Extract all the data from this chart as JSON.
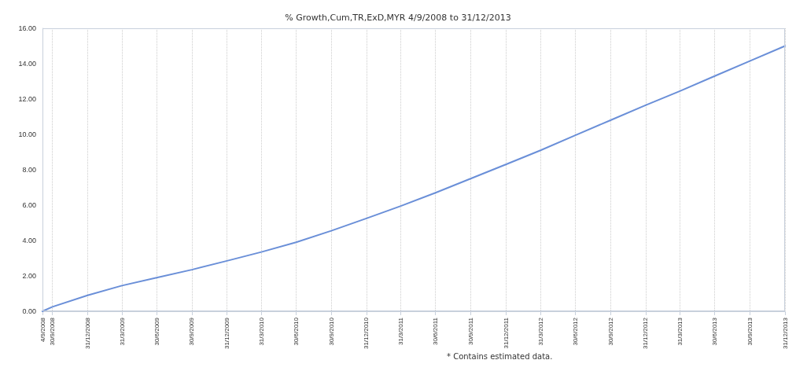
{
  "chart_data": {
    "type": "line",
    "title": "% Growth,Cum,TR,ExD,MYR 4/9/2008 to 31/12/2013",
    "annotations": [
      "* Contains estimated data."
    ],
    "x": [
      "2008-09-04",
      "2008-09-30",
      "2008-12-31",
      "2009-03-31",
      "2009-06-30",
      "2009-09-30",
      "2009-12-31",
      "2010-03-31",
      "2010-06-30",
      "2010-09-30",
      "2010-12-31",
      "2011-03-31",
      "2011-06-30",
      "2011-09-30",
      "2011-12-31",
      "2012-03-31",
      "2012-06-30",
      "2012-09-30",
      "2012-12-31",
      "2013-03-31",
      "2013-06-30",
      "2013-09-30",
      "2013-12-31"
    ],
    "series": [
      {
        "color": "#6a8fd8",
        "values": [
          0,
          0.25,
          0.9,
          1.45,
          1.9,
          2.35,
          2.85,
          3.35,
          3.9,
          4.55,
          5.25,
          5.95,
          6.7,
          7.5,
          8.3,
          9.1,
          9.95,
          10.8,
          11.65,
          12.45,
          13.3,
          14.15,
          15.0
        ]
      }
    ],
    "xlim": [
      "2008-09-04",
      "2013-12-31"
    ],
    "xticks": [
      {
        "value": "2008-09-04",
        "label": "4/9/2008"
      },
      {
        "value": "2008-09-30",
        "label": "30/9/2008"
      },
      {
        "value": "2008-12-31",
        "label": "31/12/2008"
      },
      {
        "value": "2009-03-31",
        "label": "31/3/2009"
      },
      {
        "value": "2009-06-30",
        "label": "30/6/2009"
      },
      {
        "value": "2009-09-30",
        "label": "30/9/2009"
      },
      {
        "value": "2009-12-31",
        "label": "31/12/2009"
      },
      {
        "value": "2010-03-31",
        "label": "31/3/2010"
      },
      {
        "value": "2010-06-30",
        "label": "30/6/2010"
      },
      {
        "value": "2010-09-30",
        "label": "30/9/2010"
      },
      {
        "value": "2010-12-31",
        "label": "31/12/2010"
      },
      {
        "value": "2011-03-31",
        "label": "31/3/2011"
      },
      {
        "value": "2011-06-30",
        "label": "30/6/2011"
      },
      {
        "value": "2011-09-30",
        "label": "30/9/2011"
      },
      {
        "value": "2011-12-31",
        "label": "31/12/2011"
      },
      {
        "value": "2012-03-31",
        "label": "31/3/2012"
      },
      {
        "value": "2012-06-30",
        "label": "30/6/2012"
      },
      {
        "value": "2012-09-30",
        "label": "30/9/2012"
      },
      {
        "value": "2012-12-31",
        "label": "31/12/2012"
      },
      {
        "value": "2013-03-31",
        "label": "31/3/2013"
      },
      {
        "value": "2013-06-30",
        "label": "30/6/2013"
      },
      {
        "value": "2013-09-30",
        "label": "30/9/2013"
      },
      {
        "value": "2013-12-31",
        "label": "31/12/2013"
      }
    ],
    "ylim": [
      0,
      16
    ],
    "yticks": [
      {
        "value": 0,
        "label": "0.00"
      },
      {
        "value": 2,
        "label": "2.00"
      },
      {
        "value": 4,
        "label": "4.00"
      },
      {
        "value": 6,
        "label": "6.00"
      },
      {
        "value": 8,
        "label": "8.00"
      },
      {
        "value": 10,
        "label": "10.00"
      },
      {
        "value": 12,
        "label": "12.00"
      },
      {
        "value": 14,
        "label": "14.00"
      },
      {
        "value": 16,
        "label": "16.00"
      }
    ],
    "grid": "x",
    "marker": "none",
    "line_style": "solid"
  }
}
